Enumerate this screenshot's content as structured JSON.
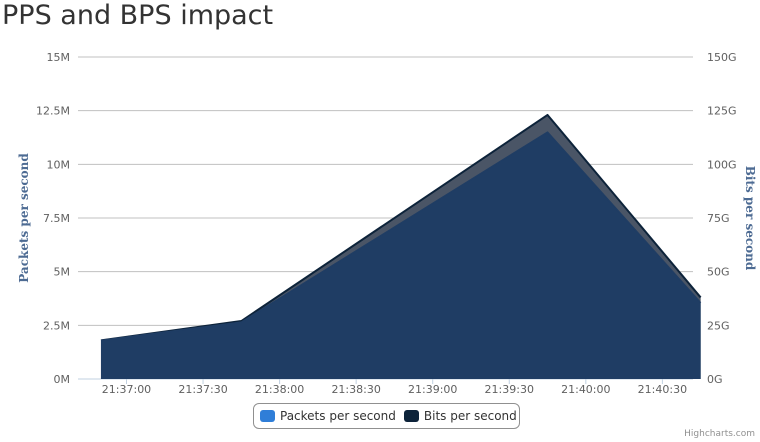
{
  "chart_data": {
    "type": "area",
    "title": "PPS and BPS impact",
    "x": [
      "21:36:50",
      "21:37:45",
      "21:39:45",
      "21:40:45"
    ],
    "x_tick_labels": [
      "21:37:00",
      "21:37:30",
      "21:38:00",
      "21:38:30",
      "21:39:00",
      "21:39:30",
      "21:40:00",
      "21:40:30"
    ],
    "y_left": {
      "label": "Packets per second",
      "ylim": [
        0,
        15000000
      ],
      "tick_labels": [
        "0M",
        "2.5M",
        "5M",
        "7.5M",
        "10M",
        "12.5M",
        "15M"
      ]
    },
    "y_right": {
      "label": "Bits per second",
      "ylim": [
        0,
        150000000000
      ],
      "tick_labels": [
        "0G",
        "25G",
        "50G",
        "75G",
        "100G",
        "125G",
        "150G"
      ]
    },
    "series": [
      {
        "name": "Bits per second",
        "axis": "right",
        "color": "#0d233a",
        "values": [
          18000000000,
          27000000000,
          123000000000,
          38000000000
        ]
      },
      {
        "name": "Packets per second",
        "axis": "left",
        "color": "#2f7ed8",
        "values": [
          1800000,
          2650000,
          11500000,
          3550000
        ]
      }
    ],
    "grid": true,
    "legend_position": "bottom-center"
  },
  "credits": "Highcharts.com"
}
